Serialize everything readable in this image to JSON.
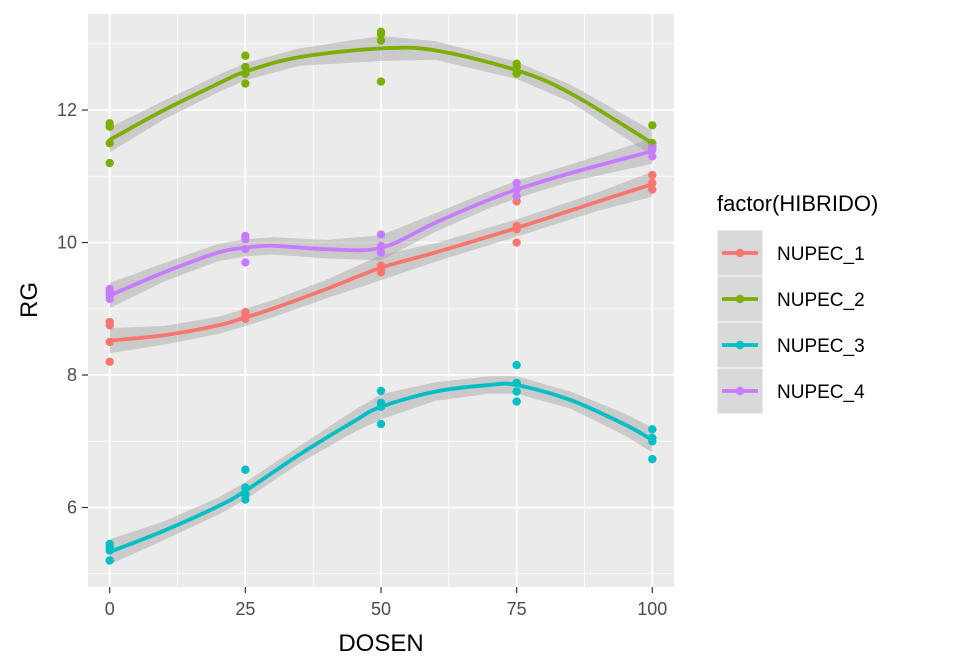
{
  "chart_data": {
    "type": "scatter",
    "title": "",
    "xlabel": "DOSEN",
    "ylabel": "RG",
    "xlim": [
      -4,
      104
    ],
    "ylim": [
      4.8,
      13.45
    ],
    "x_ticks": [
      0,
      25,
      50,
      75,
      100
    ],
    "x_tick_labels": [
      "0",
      "25",
      "50",
      "75",
      "100"
    ],
    "y_ticks": [
      6,
      8,
      10,
      12
    ],
    "y_tick_labels": [
      "6",
      "8",
      "10",
      "12"
    ],
    "grid": true,
    "legend": {
      "title": "factor(HIBRIDO)",
      "position": "right"
    },
    "series": [
      {
        "name": "NUPEC_1",
        "color": "#F8766D",
        "points": [
          [
            0,
            8.2
          ],
          [
            0,
            8.5
          ],
          [
            0,
            8.75
          ],
          [
            0,
            8.8
          ],
          [
            25,
            8.85
          ],
          [
            25,
            8.9
          ],
          [
            25,
            8.95
          ],
          [
            50,
            9.55
          ],
          [
            50,
            9.6
          ],
          [
            50,
            9.65
          ],
          [
            75,
            10.0
          ],
          [
            75,
            10.2
          ],
          [
            75,
            10.25
          ],
          [
            75,
            10.62
          ],
          [
            100,
            10.8
          ],
          [
            100,
            10.9
          ],
          [
            100,
            11.02
          ]
        ],
        "smooth": [
          [
            0,
            8.52
          ],
          [
            10,
            8.6
          ],
          [
            20,
            8.75
          ],
          [
            25,
            8.87
          ],
          [
            30,
            9.0
          ],
          [
            40,
            9.3
          ],
          [
            50,
            9.62
          ],
          [
            60,
            9.85
          ],
          [
            75,
            10.22
          ],
          [
            90,
            10.62
          ],
          [
            100,
            10.88
          ]
        ]
      },
      {
        "name": "NUPEC_2",
        "color": "#7CAE00",
        "points": [
          [
            0,
            11.2
          ],
          [
            0,
            11.5
          ],
          [
            0,
            11.75
          ],
          [
            0,
            11.8
          ],
          [
            25,
            12.4
          ],
          [
            25,
            12.55
          ],
          [
            25,
            12.65
          ],
          [
            25,
            12.82
          ],
          [
            50,
            12.43
          ],
          [
            50,
            13.05
          ],
          [
            50,
            13.15
          ],
          [
            50,
            13.18
          ],
          [
            75,
            12.55
          ],
          [
            75,
            12.65
          ],
          [
            75,
            12.7
          ],
          [
            100,
            11.45
          ],
          [
            100,
            11.5
          ],
          [
            100,
            11.77
          ]
        ],
        "smooth": [
          [
            0,
            11.55
          ],
          [
            10,
            12.0
          ],
          [
            20,
            12.4
          ],
          [
            25,
            12.58
          ],
          [
            35,
            12.8
          ],
          [
            50,
            12.93
          ],
          [
            60,
            12.9
          ],
          [
            75,
            12.6
          ],
          [
            85,
            12.25
          ],
          [
            100,
            11.5
          ]
        ]
      },
      {
        "name": "NUPEC_3",
        "color": "#00BFC4",
        "points": [
          [
            0,
            5.2
          ],
          [
            0,
            5.35
          ],
          [
            0,
            5.4
          ],
          [
            0,
            5.45
          ],
          [
            25,
            6.12
          ],
          [
            25,
            6.2
          ],
          [
            25,
            6.3
          ],
          [
            25,
            6.57
          ],
          [
            50,
            7.26
          ],
          [
            50,
            7.52
          ],
          [
            50,
            7.58
          ],
          [
            50,
            7.76
          ],
          [
            75,
            7.6
          ],
          [
            75,
            7.75
          ],
          [
            75,
            7.88
          ],
          [
            75,
            8.15
          ],
          [
            100,
            6.73
          ],
          [
            100,
            7.0
          ],
          [
            100,
            7.05
          ],
          [
            100,
            7.18
          ]
        ],
        "smooth": [
          [
            0,
            5.33
          ],
          [
            10,
            5.65
          ],
          [
            20,
            6.02
          ],
          [
            25,
            6.25
          ],
          [
            35,
            6.8
          ],
          [
            45,
            7.3
          ],
          [
            50,
            7.52
          ],
          [
            60,
            7.75
          ],
          [
            70,
            7.85
          ],
          [
            75,
            7.85
          ],
          [
            85,
            7.62
          ],
          [
            95,
            7.25
          ],
          [
            100,
            7.02
          ]
        ]
      },
      {
        "name": "NUPEC_4",
        "color": "#C77CFF",
        "points": [
          [
            0,
            9.15
          ],
          [
            0,
            9.2
          ],
          [
            0,
            9.25
          ],
          [
            0,
            9.3
          ],
          [
            25,
            9.7
          ],
          [
            25,
            9.9
          ],
          [
            25,
            10.05
          ],
          [
            25,
            10.1
          ],
          [
            50,
            9.85
          ],
          [
            50,
            9.95
          ],
          [
            50,
            10.12
          ],
          [
            75,
            10.7
          ],
          [
            75,
            10.8
          ],
          [
            75,
            10.9
          ],
          [
            100,
            11.3
          ],
          [
            100,
            11.4
          ],
          [
            100,
            11.45
          ]
        ],
        "smooth": [
          [
            0,
            9.2
          ],
          [
            10,
            9.55
          ],
          [
            20,
            9.85
          ],
          [
            25,
            9.92
          ],
          [
            30,
            9.95
          ],
          [
            40,
            9.9
          ],
          [
            50,
            9.92
          ],
          [
            60,
            10.3
          ],
          [
            70,
            10.65
          ],
          [
            75,
            10.8
          ],
          [
            85,
            11.05
          ],
          [
            100,
            11.38
          ]
        ]
      }
    ]
  }
}
